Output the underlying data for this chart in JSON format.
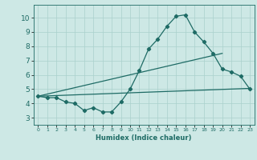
{
  "xlabel": "Humidex (Indice chaleur)",
  "xlim": [
    -0.5,
    23.5
  ],
  "ylim": [
    2.5,
    10.9
  ],
  "yticks": [
    3,
    4,
    5,
    6,
    7,
    8,
    9,
    10
  ],
  "xticks": [
    0,
    1,
    2,
    3,
    4,
    5,
    6,
    7,
    8,
    9,
    10,
    11,
    12,
    13,
    14,
    15,
    16,
    17,
    18,
    19,
    20,
    21,
    22,
    23
  ],
  "bg_color": "#cde8e5",
  "line_color": "#1e6b65",
  "grid_color": "#aad0cc",
  "series": [
    {
      "x": [
        0,
        1,
        2,
        3,
        4,
        5,
        6,
        7,
        8,
        9,
        10,
        11,
        12,
        13,
        14,
        15,
        16,
        17,
        18,
        19,
        20,
        21,
        22,
        23
      ],
      "y": [
        4.5,
        4.4,
        4.4,
        4.1,
        4.0,
        3.5,
        3.7,
        3.4,
        3.4,
        4.1,
        5.0,
        6.3,
        7.8,
        8.5,
        9.4,
        10.1,
        10.2,
        9.0,
        8.3,
        7.5,
        6.4,
        6.2,
        5.9,
        5.0
      ],
      "marker": "D",
      "markersize": 2.2,
      "linewidth": 0.9
    },
    {
      "x": [
        0,
        20
      ],
      "y": [
        4.5,
        7.5
      ],
      "marker": null,
      "linewidth": 0.9
    },
    {
      "x": [
        0,
        23
      ],
      "y": [
        4.5,
        5.05
      ],
      "marker": null,
      "linewidth": 0.9
    }
  ]
}
